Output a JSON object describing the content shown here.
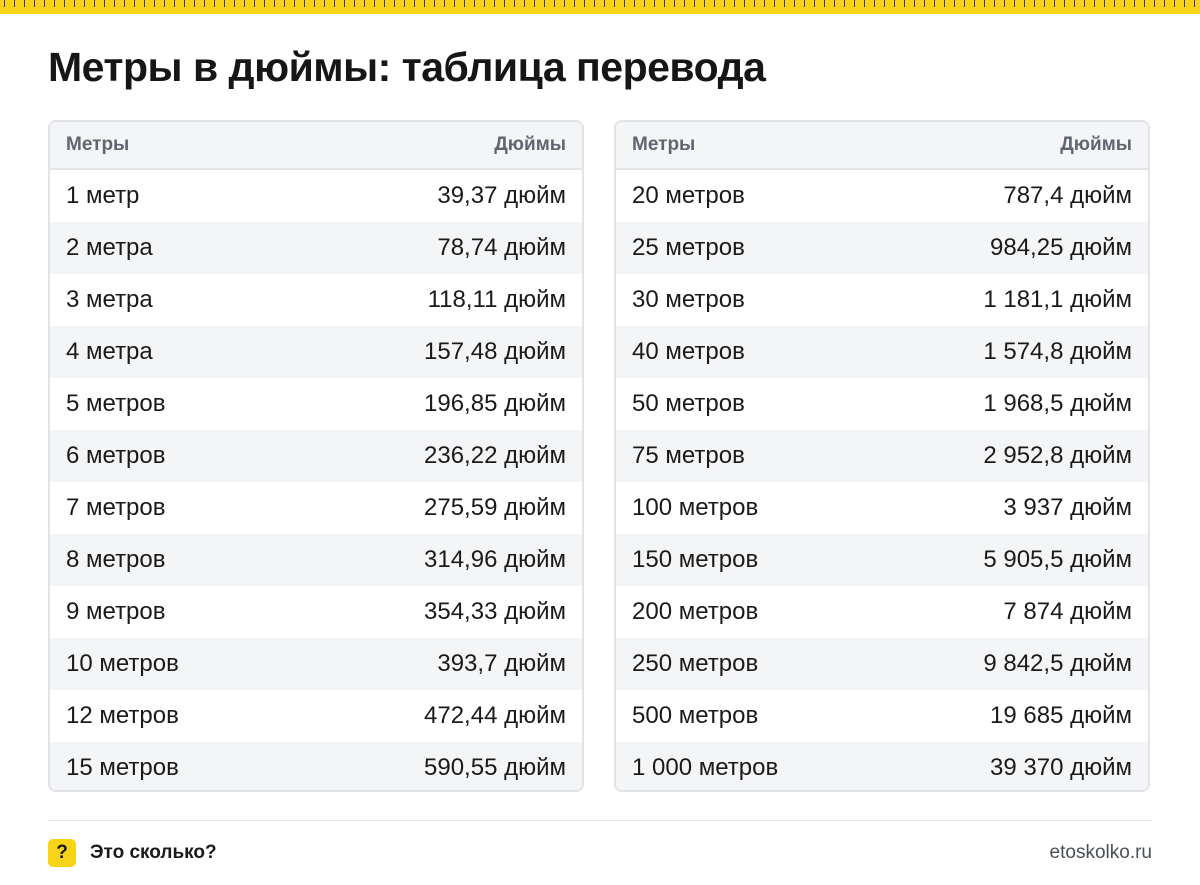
{
  "title": "Метры в дюймы: таблица перевода",
  "columns": {
    "meters": "Метры",
    "inches": "Дюймы"
  },
  "left_table": [
    {
      "meters": "1 метр",
      "inches": "39,37 дюйм"
    },
    {
      "meters": "2 метра",
      "inches": "78,74 дюйм"
    },
    {
      "meters": "3 метра",
      "inches": "118,11 дюйм"
    },
    {
      "meters": "4 метра",
      "inches": "157,48 дюйм"
    },
    {
      "meters": "5 метров",
      "inches": "196,85 дюйм"
    },
    {
      "meters": "6 метров",
      "inches": "236,22 дюйм"
    },
    {
      "meters": "7 метров",
      "inches": "275,59 дюйм"
    },
    {
      "meters": "8 метров",
      "inches": "314,96 дюйм"
    },
    {
      "meters": "9 метров",
      "inches": "354,33 дюйм"
    },
    {
      "meters": "10 метров",
      "inches": "393,7 дюйм"
    },
    {
      "meters": "12 метров",
      "inches": "472,44 дюйм"
    },
    {
      "meters": "15 метров",
      "inches": "590,55 дюйм"
    }
  ],
  "right_table": [
    {
      "meters": "20 метров",
      "inches": "787,4 дюйм"
    },
    {
      "meters": "25 метров",
      "inches": "984,25 дюйм"
    },
    {
      "meters": "30 метров",
      "inches": "1 181,1 дюйм"
    },
    {
      "meters": "40 метров",
      "inches": "1 574,8 дюйм"
    },
    {
      "meters": "50 метров",
      "inches": "1 968,5 дюйм"
    },
    {
      "meters": "75 метров",
      "inches": "2 952,8 дюйм"
    },
    {
      "meters": "100 метров",
      "inches": "3 937 дюйм"
    },
    {
      "meters": "150 метров",
      "inches": "5 905,5 дюйм"
    },
    {
      "meters": "200 метров",
      "inches": "7 874 дюйм"
    },
    {
      "meters": "250 метров",
      "inches": "9 842,5 дюйм"
    },
    {
      "meters": "500 метров",
      "inches": "19 685 дюйм"
    },
    {
      "meters": "1 000 метров",
      "inches": "39 370 дюйм"
    }
  ],
  "footer": {
    "icon_symbol": "?",
    "icon_name": "question-icon",
    "brand": "Это сколько?",
    "site": "etoskolko.ru"
  },
  "colors": {
    "accent": "#f7d417",
    "header_bg": "#f4f5f7",
    "border": "#e1e3e7"
  }
}
